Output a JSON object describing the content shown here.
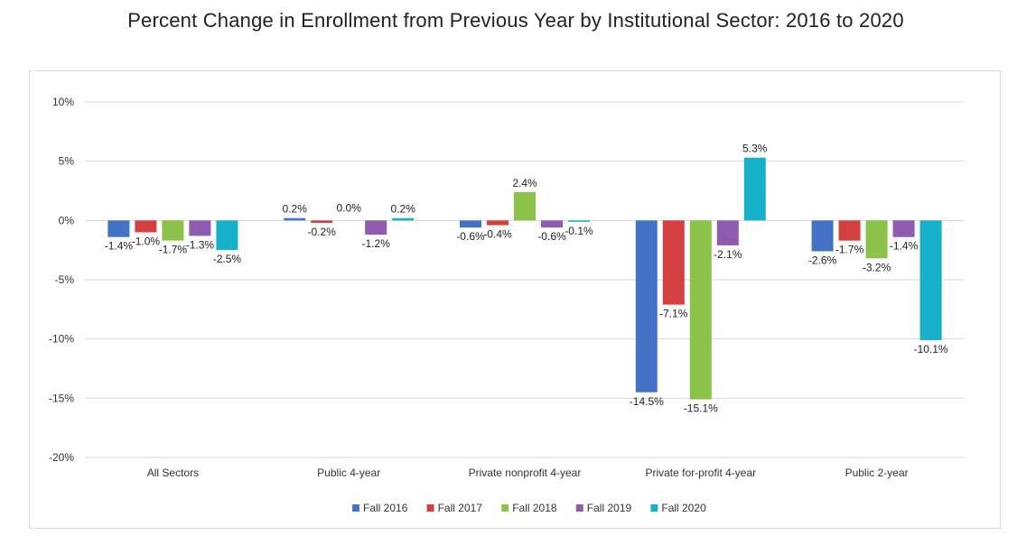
{
  "chart_data": {
    "type": "bar",
    "title": "Percent Change in Enrollment from Previous Year by Institutional Sector: 2016 to 2020",
    "xlabel": "",
    "ylabel": "",
    "categories": [
      "All Sectors",
      "Public 4-year",
      "Private nonprofit 4-year",
      "Private for-profit 4-year",
      "Public 2-year"
    ],
    "series": [
      {
        "name": "Fall 2016",
        "color": "#4472C4",
        "values": [
          -1.4,
          0.2,
          -0.6,
          -14.5,
          -2.6
        ],
        "labels": [
          "-1.4%",
          "0.2%",
          "-0.6%",
          "-14.5%",
          "-2.6%"
        ]
      },
      {
        "name": "Fall 2017",
        "color": "#D43F3F",
        "values": [
          -1.0,
          -0.2,
          -0.4,
          -7.1,
          -1.7
        ],
        "labels": [
          "-1.0%",
          "-0.2%",
          "-0.4%",
          "-7.1%",
          "-1.7%"
        ]
      },
      {
        "name": "Fall 2018",
        "color": "#8BC34A",
        "values": [
          -1.7,
          0.0,
          2.4,
          -15.1,
          -3.2
        ],
        "labels": [
          "-1.7%",
          "0.0%",
          "2.4%",
          "-15.1%",
          "-3.2%"
        ]
      },
      {
        "name": "Fall 2019",
        "color": "#8E5BAE",
        "values": [
          -1.3,
          -1.2,
          -0.6,
          -2.1,
          -1.4
        ],
        "labels": [
          "-1.3%",
          "-1.2%",
          "-0.6%",
          "-2.1%",
          "-1.4%"
        ]
      },
      {
        "name": "Fall 2020",
        "color": "#17B0C9",
        "values": [
          -2.5,
          0.2,
          -0.1,
          5.3,
          -10.1
        ],
        "labels": [
          "-2.5%",
          "0.2%",
          "-0.1%",
          "5.3%",
          "-10.1%"
        ]
      }
    ],
    "ylim": [
      -20,
      10
    ],
    "yticks": [
      10,
      5,
      0,
      -5,
      -10,
      -15,
      -20
    ],
    "ytick_labels": [
      "10%",
      "5%",
      "0%",
      "-5%",
      "-10%",
      "-15%",
      "-20%"
    ],
    "grid": true,
    "legend_position": "bottom"
  }
}
